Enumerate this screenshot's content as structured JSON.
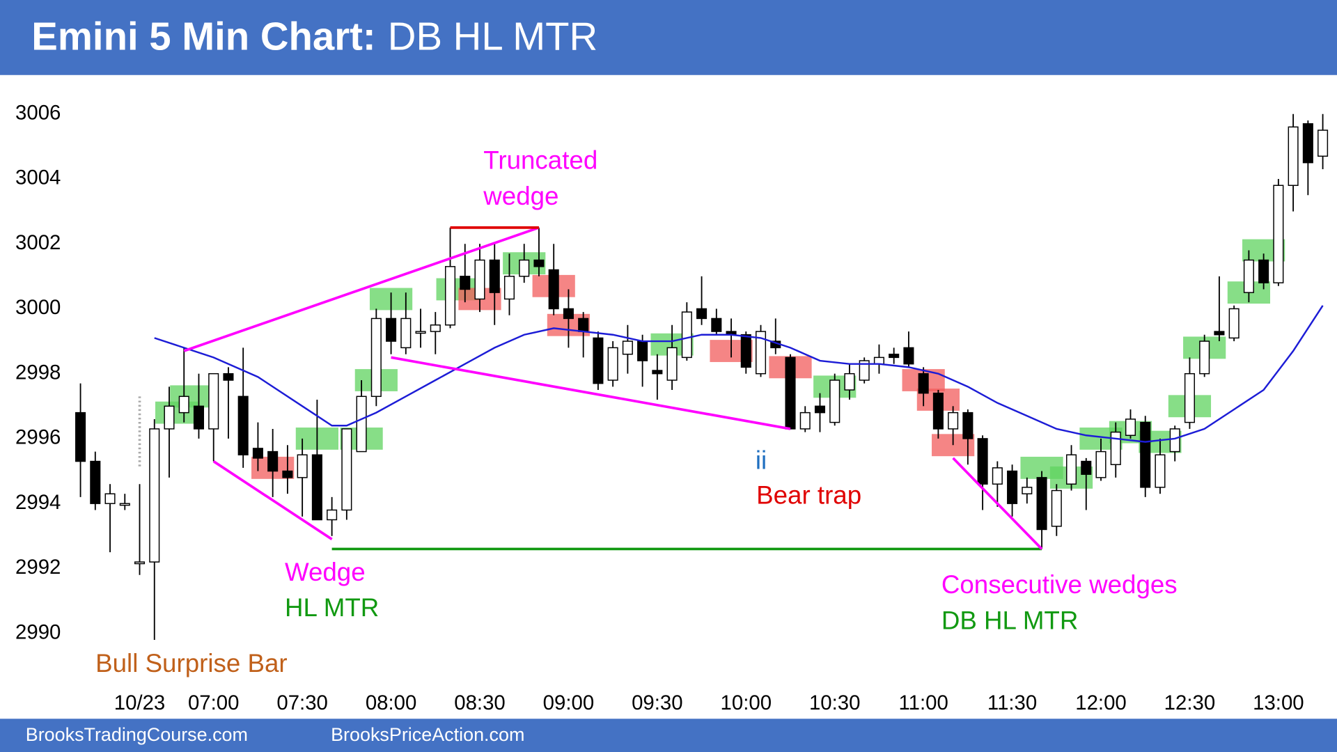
{
  "chart_data": {
    "type": "candlestick",
    "title_bold": "Emini 5 Min Chart:",
    "title": "DB HL MTR",
    "footer": [
      "BrooksTradingCourse.com",
      "BrooksPriceAction.com"
    ],
    "categories": [
      null,
      null,
      null,
      null,
      "10/23",
      null,
      null,
      null,
      null,
      "07:00",
      null,
      null,
      null,
      null,
      null,
      "07:30",
      null,
      null,
      null,
      null,
      null,
      "08:00",
      null,
      null,
      null,
      null,
      null,
      "08:30",
      null,
      null,
      null,
      null,
      null,
      "09:00",
      null,
      null,
      null,
      null,
      null,
      "09:30",
      null,
      null,
      null,
      null,
      null,
      "10:00",
      null,
      null,
      null,
      null,
      null,
      "10:30",
      null,
      null,
      null,
      null,
      null,
      "11:00",
      null,
      null,
      null,
      null,
      null,
      "11:30",
      null,
      null,
      null,
      null,
      null,
      "12:00",
      null,
      null,
      null,
      null,
      null,
      "12:30",
      null,
      null,
      null,
      null,
      null,
      "13:00",
      null,
      null,
      null
    ],
    "open": [
      2996.8,
      2995.3,
      2994.0,
      2994.0,
      2992.2,
      2992.2,
      2996.3,
      2996.8,
      2997.0,
      2996.3,
      2998.0,
      2997.3,
      2995.7,
      2995.6,
      2995.0,
      2994.8,
      2995.5,
      2993.5,
      2993.8,
      2995.6,
      2997.3,
      2999.7,
      2998.8,
      2999.3,
      2999.3,
      2999.5,
      3001.0,
      3000.3,
      3001.5,
      3000.3,
      3001.0,
      3001.5,
      3001.2,
      3000.0,
      2999.7,
      2999.1,
      2997.8,
      2998.6,
      2999.0,
      2998.1,
      2997.8,
      2998.5,
      3000.0,
      2999.7,
      2999.3,
      2999.2,
      2998.0,
      2999.0,
      2998.5,
      2996.3,
      2997.0,
      2996.5,
      2997.5,
      2997.8,
      2998.3,
      2998.6,
      2998.8,
      2998.0,
      2997.4,
      2996.3,
      2996.8,
      2996.0,
      2994.6,
      2995.0,
      2994.3,
      2994.8,
      2993.3,
      2994.6,
      2995.3,
      2994.8,
      2995.2,
      2996.1,
      2996.5,
      2994.5,
      2995.6,
      2996.5,
      2998.0,
      2999.3,
      2999.1,
      3000.5,
      3001.5,
      3000.8,
      3003.8,
      3005.7,
      3004.7
    ],
    "high": [
      2997.7,
      2995.6,
      2994.6,
      2994.3,
      2994.6,
      2996.6,
      2997.6,
      2998.8,
      2998.0,
      2998.0,
      2998.2,
      2998.8,
      2996.5,
      2996.3,
      2995.8,
      2996.0,
      2997.2,
      2994.2,
      2996.3,
      2997.8,
      3000.0,
      3000.5,
      3000.5,
      3000.0,
      2999.9,
      3002.5,
      3002.0,
      3002.0,
      3002.0,
      3001.7,
      3002.0,
      3002.5,
      3002.0,
      3000.6,
      2999.9,
      2999.3,
      2999.0,
      2999.5,
      2999.2,
      2998.6,
      2999.5,
      3000.2,
      3001.0,
      3000.0,
      2999.7,
      2999.3,
      2999.5,
      2999.7,
      2998.6,
      2997.0,
      2997.4,
      2998.0,
      2998.3,
      2998.5,
      2998.9,
      2998.8,
      2999.3,
      2998.2,
      2997.5,
      2997.0,
      2996.9,
      2996.1,
      2995.3,
      2995.2,
      2994.8,
      2995.0,
      2994.6,
      2995.8,
      2995.4,
      2996.0,
      2996.5,
      2996.9,
      2996.7,
      2996.0,
      2996.4,
      2998.5,
      2999.2,
      3001.0,
      3000.1,
      3001.8,
      3001.7,
      3004.0,
      3006.0,
      3005.8,
      3006.0
    ],
    "low": [
      2994.2,
      2993.8,
      2992.5,
      2993.8,
      2991.8,
      2989.8,
      2994.8,
      2996.5,
      2996.0,
      2995.3,
      2996.0,
      2995.1,
      2995.0,
      2994.2,
      2994.3,
      2993.6,
      2993.5,
      2993.0,
      2993.5,
      2995.6,
      2997.0,
      2998.6,
      2998.6,
      2998.8,
      2998.6,
      2999.4,
      3000.2,
      2999.9,
      2999.5,
      2999.8,
      3000.8,
      3001.0,
      2999.8,
      2998.8,
      2998.5,
      2997.5,
      2997.6,
      2998.0,
      2997.6,
      2997.2,
      2997.5,
      2998.4,
      2999.5,
      2999.2,
      2998.5,
      2998.0,
      2997.9,
      2998.6,
      2996.3,
      2996.2,
      2996.2,
      2996.4,
      2997.2,
      2997.7,
      2998.0,
      2998.3,
      2998.2,
      2997.0,
      2996.0,
      2995.8,
      2995.2,
      2993.8,
      2993.9,
      2993.6,
      2994.0,
      2992.6,
      2993.0,
      2994.4,
      2993.8,
      2994.7,
      2994.8,
      2996.0,
      2994.2,
      2994.3,
      2995.3,
      2996.3,
      2997.9,
      2999.0,
      2999.0,
      3000.2,
      3000.6,
      3000.7,
      3003.0,
      3003.5,
      3004.3
    ],
    "close": [
      2995.3,
      2994.0,
      2994.3,
      2994.0,
      2992.2,
      2996.3,
      2997.0,
      2997.3,
      2996.3,
      2998.0,
      2997.8,
      2995.5,
      2995.4,
      2995.0,
      2994.8,
      2995.5,
      2993.5,
      2993.8,
      2996.3,
      2997.3,
      2999.7,
      2999.0,
      2999.7,
      2999.3,
      2999.5,
      3001.3,
      3000.6,
      3001.5,
      3000.5,
      3001.0,
      3001.5,
      3001.3,
      3000.0,
      2999.7,
      2999.3,
      2997.7,
      2998.8,
      2999.0,
      2998.4,
      2998.0,
      2998.8,
      2999.9,
      2999.7,
      2999.3,
      2999.2,
      2998.2,
      2999.3,
      2998.8,
      2996.3,
      2996.8,
      2996.8,
      2997.8,
      2998.0,
      2998.4,
      2998.5,
      2998.5,
      2998.3,
      2997.4,
      2996.3,
      2996.8,
      2996.0,
      2994.6,
      2995.1,
      2994.0,
      2994.5,
      2993.2,
      2994.4,
      2995.5,
      2994.9,
      2995.6,
      2996.2,
      2996.6,
      2994.5,
      2995.5,
      2996.3,
      2998.0,
      2999.0,
      2999.2,
      3000.0,
      3001.5,
      3000.8,
      3003.8,
      3005.6,
      3004.5,
      3005.5
    ],
    "up_color": "#ffffff",
    "down_color": "#000000",
    "ma": {
      "color": "#1c1cd6",
      "x": [
        5,
        7,
        9,
        12,
        15,
        17,
        18,
        20,
        22,
        24,
        26,
        28,
        30,
        32,
        34,
        36,
        38,
        40,
        42,
        44,
        46,
        48,
        50,
        52,
        54,
        56,
        58,
        60,
        62,
        64,
        66,
        68,
        70,
        72,
        74,
        76,
        78,
        80,
        82,
        84
      ],
      "values": [
        2999.1,
        2998.8,
        2998.5,
        2997.9,
        2997.0,
        2996.4,
        2996.4,
        2996.8,
        2997.3,
        2997.8,
        2998.3,
        2998.8,
        2999.2,
        2999.4,
        2999.3,
        2999.2,
        2999.0,
        2999.0,
        2999.2,
        2999.2,
        2999.1,
        2998.8,
        2998.4,
        2998.3,
        2998.3,
        2998.2,
        2998.0,
        2997.6,
        2997.1,
        2996.7,
        2996.3,
        2996.1,
        2996.0,
        2995.9,
        2996.0,
        2996.3,
        2996.9,
        2997.5,
        2998.7,
        3000.1
      ]
    },
    "highlights": [
      {
        "x": 6.5,
        "y": 2996.8,
        "color": "#5fd35f"
      },
      {
        "x": 7.5,
        "y": 2997.3,
        "color": "#5fd35f"
      },
      {
        "x": 16,
        "y": 2996.0,
        "color": "#5fd35f"
      },
      {
        "x": 19,
        "y": 2996.0,
        "color": "#5fd35f"
      },
      {
        "x": 20,
        "y": 2997.8,
        "color": "#5fd35f"
      },
      {
        "x": 21,
        "y": 3000.3,
        "color": "#5fd35f"
      },
      {
        "x": 25.5,
        "y": 3000.6,
        "color": "#5fd35f"
      },
      {
        "x": 30,
        "y": 3001.4,
        "color": "#5fd35f"
      },
      {
        "x": 40,
        "y": 2998.9,
        "color": "#5fd35f"
      },
      {
        "x": 51,
        "y": 2997.6,
        "color": "#5fd35f"
      },
      {
        "x": 65,
        "y": 2995.1,
        "color": "#5fd35f"
      },
      {
        "x": 67,
        "y": 2994.8,
        "color": "#5fd35f"
      },
      {
        "x": 69,
        "y": 2996.0,
        "color": "#5fd35f"
      },
      {
        "x": 71,
        "y": 2996.2,
        "color": "#5fd35f"
      },
      {
        "x": 73,
        "y": 2995.9,
        "color": "#5fd35f"
      },
      {
        "x": 75,
        "y": 2997.0,
        "color": "#5fd35f"
      },
      {
        "x": 76,
        "y": 2998.8,
        "color": "#5fd35f"
      },
      {
        "x": 79,
        "y": 3000.5,
        "color": "#5fd35f"
      },
      {
        "x": 80,
        "y": 3001.8,
        "color": "#5fd35f"
      },
      {
        "x": 13,
        "y": 2995.1,
        "color": "#f25c5c"
      },
      {
        "x": 27,
        "y": 3000.3,
        "color": "#f25c5c"
      },
      {
        "x": 32,
        "y": 3000.7,
        "color": "#f25c5c"
      },
      {
        "x": 33,
        "y": 2999.5,
        "color": "#f25c5c"
      },
      {
        "x": 44,
        "y": 2998.7,
        "color": "#f25c5c"
      },
      {
        "x": 48,
        "y": 2998.2,
        "color": "#f25c5c"
      },
      {
        "x": 57,
        "y": 2997.8,
        "color": "#f25c5c"
      },
      {
        "x": 58,
        "y": 2997.2,
        "color": "#f25c5c"
      },
      {
        "x": 59,
        "y": 2995.8,
        "color": "#f25c5c"
      }
    ],
    "lines": [
      {
        "x1": 7,
        "y1": 2998.7,
        "x2": 31,
        "y2": 3002.5,
        "color": "#ff00ff"
      },
      {
        "x1": 25,
        "y1": 3002.5,
        "x2": 31,
        "y2": 3002.5,
        "color": "#e00000"
      },
      {
        "x1": 9,
        "y1": 2995.3,
        "x2": 17,
        "y2": 2992.9,
        "color": "#ff00ff"
      },
      {
        "x1": 21,
        "y1": 2998.5,
        "x2": 48,
        "y2": 2996.3,
        "color": "#ff00ff"
      },
      {
        "x1": 17,
        "y1": 2992.6,
        "x2": 65,
        "y2": 2992.6,
        "color": "#119911"
      },
      {
        "x1": 59,
        "y1": 2995.4,
        "x2": 65,
        "y2": 2992.6,
        "color": "#ff00ff"
      },
      {
        "x1": 4,
        "y1": 2997.3,
        "x2": 4,
        "y2": 2995.1,
        "color": "#aaaaaa",
        "dashed": true
      }
    ],
    "annotations": [
      {
        "text": "Truncated",
        "color": "#ff00ff"
      },
      {
        "text": "wedge",
        "color": "#ff00ff"
      },
      {
        "text": "Wedge",
        "color": "#ff00ff"
      },
      {
        "text": "HL MTR",
        "color": "#119911"
      },
      {
        "text": "ii",
        "color": "#1f6fc0"
      },
      {
        "text": "Bear trap",
        "color": "#e00000"
      },
      {
        "text": "Bull Surprise Bar",
        "color": "#c0601a"
      },
      {
        "text": "Consecutive wedges",
        "color": "#ff00ff"
      },
      {
        "text": "DB HL MTR",
        "color": "#119911"
      }
    ],
    "xlim": [
      -4,
      84.5
    ],
    "ylim": [
      2988.5,
      3007.2
    ],
    "yticks": [
      2990,
      2992,
      2994,
      2996,
      2998,
      3000,
      3002,
      3004,
      3006
    ]
  }
}
